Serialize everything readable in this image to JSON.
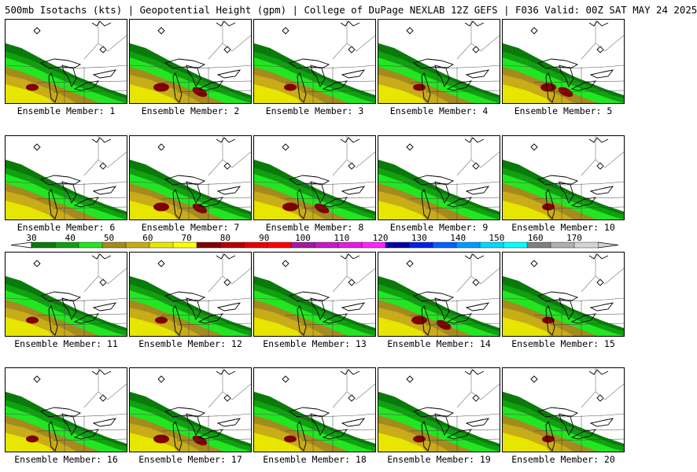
{
  "header": {
    "title": "500mb Isotachs (kts) | Geopotential Height (gpm) | College of DuPage NEXLAB    12Z GEFS | F036 Valid: 00Z SAT MAY 24 2025"
  },
  "colorbar": {
    "ticks": [
      "30",
      "40",
      "50",
      "60",
      "70",
      "80",
      "90",
      "100",
      "110",
      "120",
      "130",
      "140",
      "150",
      "160",
      "170"
    ],
    "colors": [
      "#0a7a0a",
      "#10a010",
      "#22e622",
      "#a58a1e",
      "#c8ac18",
      "#e6e600",
      "#ffff00",
      "#800000",
      "#b40000",
      "#e40000",
      "#ff0000",
      "#a01ca0",
      "#c21cc2",
      "#e21ce2",
      "#ff22ff",
      "#0000a0",
      "#0022e6",
      "#0060ff",
      "#009aff",
      "#00d8ff",
      "#00ffff",
      "#808080",
      "#b0b0b0",
      "#d4d4d4"
    ]
  },
  "members": [
    {
      "label": "Ensemble Member: 1",
      "intensity": 2
    },
    {
      "label": "Ensemble Member: 2",
      "intensity": 3
    },
    {
      "label": "Ensemble Member: 3",
      "intensity": 2
    },
    {
      "label": "Ensemble Member: 4",
      "intensity": 2
    },
    {
      "label": "Ensemble Member: 5",
      "intensity": 3
    },
    {
      "label": "Ensemble Member: 6",
      "intensity": 1
    },
    {
      "label": "Ensemble Member: 7",
      "intensity": 3
    },
    {
      "label": "Ensemble Member: 8",
      "intensity": 3
    },
    {
      "label": "Ensemble Member: 9",
      "intensity": 1
    },
    {
      "label": "Ensemble Member: 10",
      "intensity": 2
    },
    {
      "label": "Ensemble Member: 11",
      "intensity": 2
    },
    {
      "label": "Ensemble Member: 12",
      "intensity": 2
    },
    {
      "label": "Ensemble Member: 13",
      "intensity": 1
    },
    {
      "label": "Ensemble Member: 14",
      "intensity": 3
    },
    {
      "label": "Ensemble Member: 15",
      "intensity": 2
    },
    {
      "label": "Ensemble Member: 16",
      "intensity": 2
    },
    {
      "label": "Ensemble Member: 17",
      "intensity": 3
    },
    {
      "label": "Ensemble Member: 18",
      "intensity": 2
    },
    {
      "label": "Ensemble Member: 19",
      "intensity": 2
    },
    {
      "label": "Ensemble Member: 20",
      "intensity": 2
    }
  ]
}
